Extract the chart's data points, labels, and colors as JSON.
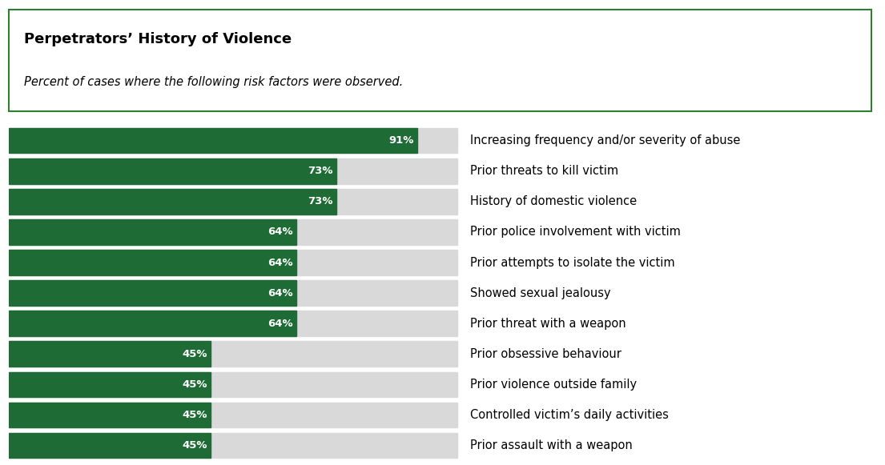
{
  "title": "Perpetrators’ History of Violence",
  "subtitle": "Percent of cases where the following risk factors were observed.",
  "categories": [
    "Increasing frequency and/or severity of abuse",
    "Prior threats to kill victim",
    "History of domestic violence",
    "Prior police involvement with victim",
    "Prior attempts to isolate the victim",
    "Showed sexual jealousy",
    "Prior threat with a weapon",
    "Prior obsessive behaviour",
    "Prior violence outside family",
    "Controlled victim’s daily activities",
    "Prior assault with a weapon"
  ],
  "values": [
    91,
    73,
    73,
    64,
    64,
    64,
    64,
    45,
    45,
    45,
    45
  ],
  "bar_color": "#1e6b35",
  "bg_bar_color": "#d9d9d9",
  "max_value": 100,
  "label_color": "#ffffff",
  "text_color": "#000000",
  "background_color": "#ffffff",
  "bar_height": 0.82,
  "label_fontsize": 9.5,
  "category_fontsize": 10.5,
  "title_fontsize": 13,
  "subtitle_fontsize": 10.5,
  "border_color": "#2e7d32"
}
